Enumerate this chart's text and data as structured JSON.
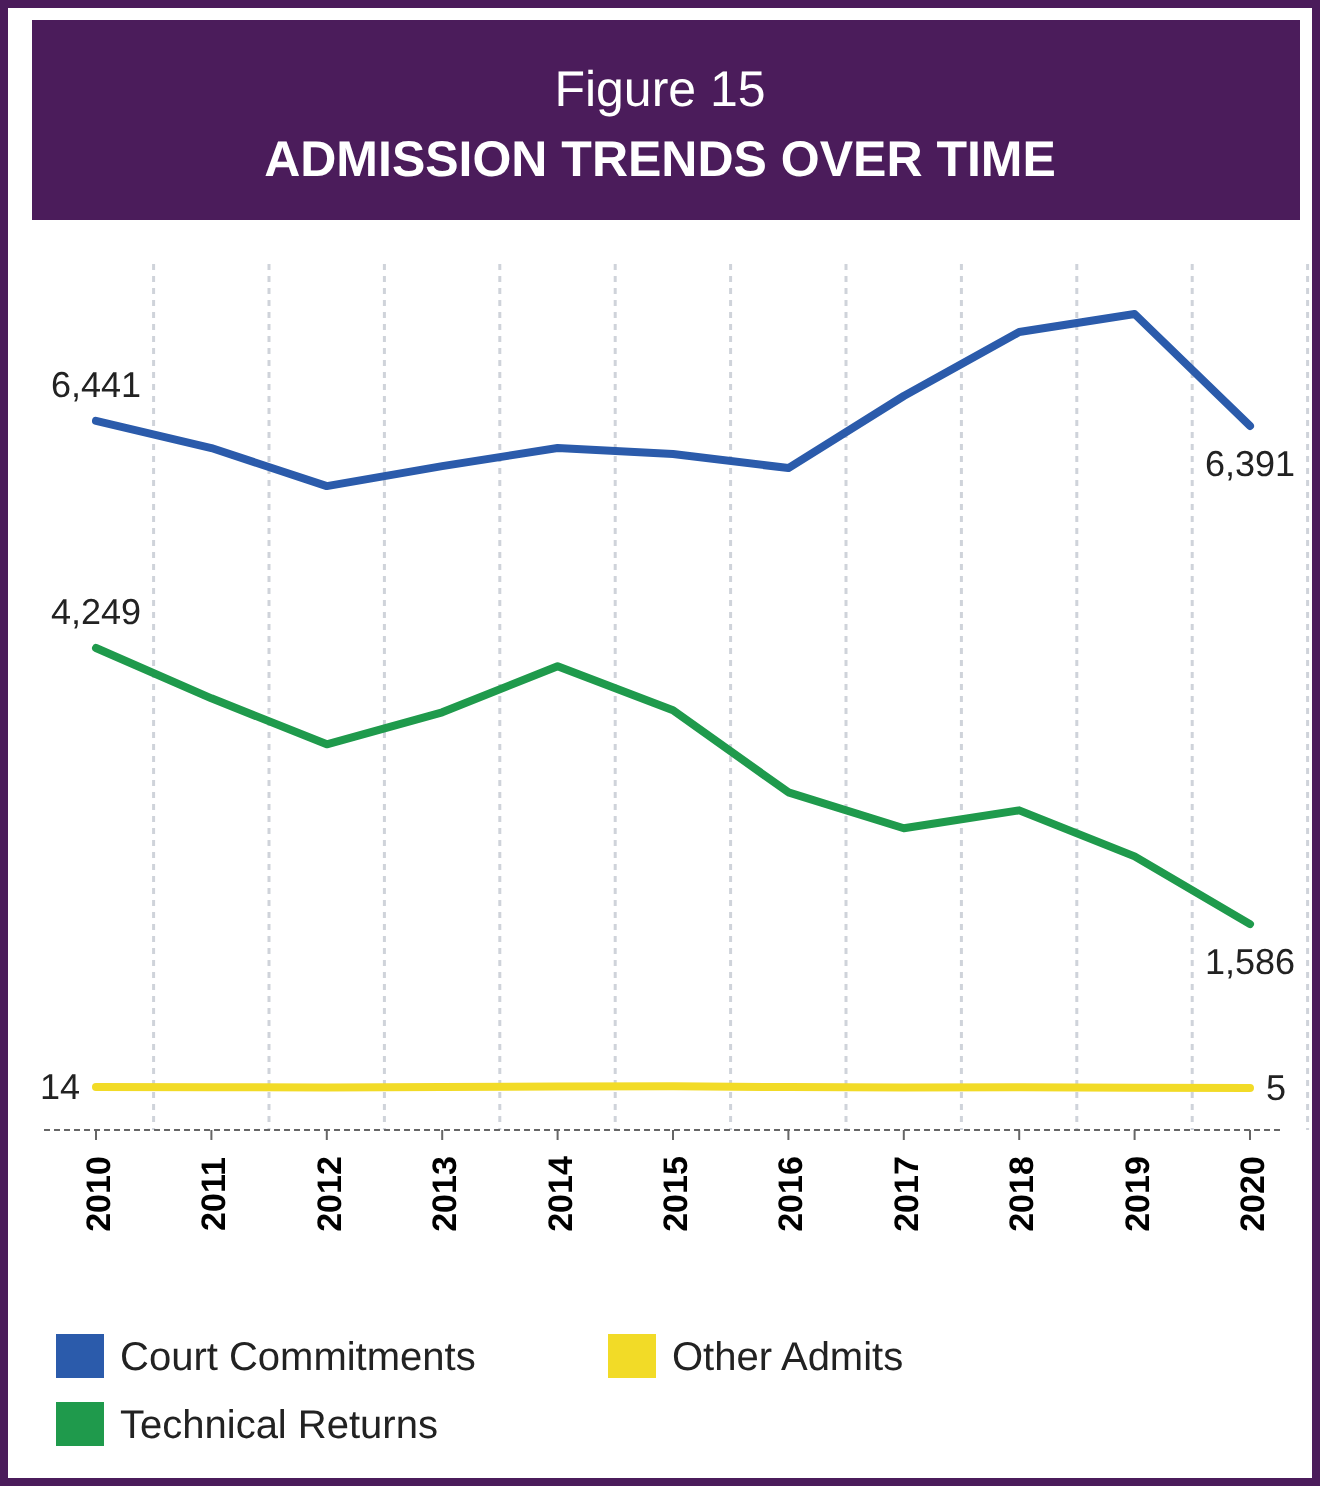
{
  "chart_data": {
    "type": "line",
    "title": "Figure 15",
    "subtitle": "ADMISSION TRENDS OVER TIME",
    "categories": [
      "2010",
      "2011",
      "2012",
      "2013",
      "2014",
      "2015",
      "2016",
      "2017",
      "2018",
      "2019",
      "2020"
    ],
    "tick_labels": "x",
    "grid": "x",
    "legend": "bottom",
    "marker": "none",
    "line_style": "solid",
    "series": [
      {
        "name": "Court Commitments",
        "color": "#2b5bab",
        "values": [
          6441,
          6178,
          5811,
          6004,
          6178,
          6120,
          5985,
          6680,
          7297,
          7471,
          6391
        ],
        "value_labels": [
          "6,441",
          null,
          null,
          null,
          null,
          null,
          null,
          null,
          null,
          null,
          "6,391"
        ]
      },
      {
        "name": "Technical Returns",
        "color": "#1f9a4c",
        "values": [
          4249,
          3764,
          3320,
          3629,
          4073,
          3649,
          2857,
          2510,
          2683,
          2239,
          1586
        ],
        "value_labels": [
          "4,249",
          null,
          null,
          null,
          null,
          null,
          null,
          null,
          null,
          null,
          "1,586"
        ]
      },
      {
        "name": "Other Admits",
        "color": "#f2db27",
        "values": [
          14,
          12,
          11,
          15,
          20,
          22,
          14,
          9,
          12,
          8,
          5
        ],
        "value_labels": [
          "14",
          null,
          null,
          null,
          null,
          null,
          null,
          null,
          null,
          null,
          "5"
        ]
      }
    ]
  }
}
